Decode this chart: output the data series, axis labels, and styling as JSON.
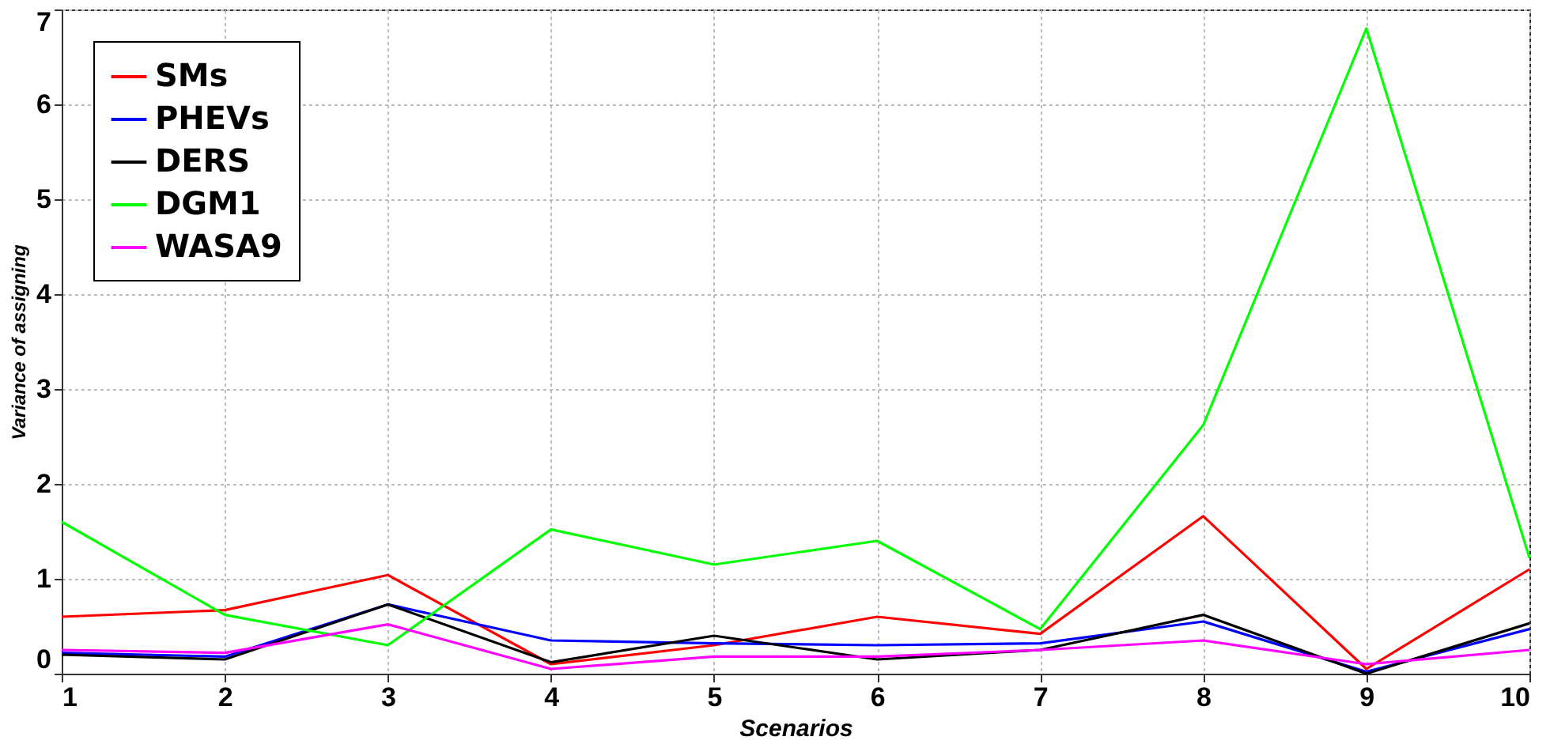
{
  "chart_data": {
    "type": "line",
    "xlabel": "Scenarios",
    "ylabel": "Variance of assigning",
    "x": [
      1,
      2,
      3,
      4,
      5,
      6,
      7,
      8,
      9,
      10
    ],
    "series": [
      {
        "name": "SMs",
        "color": "#ff0000",
        "values": [
          0.6,
          0.67,
          1.04,
          0.1,
          0.3,
          0.6,
          0.42,
          1.66,
          0.05,
          1.1
        ]
      },
      {
        "name": "PHEVs",
        "color": "#0000ff",
        "values": [
          0.22,
          0.18,
          0.73,
          0.35,
          0.32,
          0.3,
          0.32,
          0.55,
          0.02,
          0.47
        ]
      },
      {
        "name": "DERS",
        "color": "#000000",
        "values": [
          0.2,
          0.15,
          0.73,
          0.12,
          0.4,
          0.15,
          0.25,
          0.62,
          0.0,
          0.53
        ]
      },
      {
        "name": "DGM1",
        "color": "#00ff00",
        "values": [
          1.6,
          0.62,
          0.3,
          1.52,
          1.15,
          1.4,
          0.47,
          2.62,
          6.8,
          1.22
        ]
      },
      {
        "name": "WASA9",
        "color": "#ff00ff",
        "values": [
          0.25,
          0.22,
          0.52,
          0.05,
          0.18,
          0.18,
          0.25,
          0.35,
          0.1,
          0.25
        ]
      }
    ],
    "xlim": [
      1,
      10
    ],
    "xticks": [
      1,
      2,
      3,
      4,
      5,
      6,
      7,
      8,
      9,
      10
    ],
    "ylim": [
      0,
      7
    ],
    "yticks": [
      0,
      1,
      2,
      3,
      4,
      5,
      6,
      7
    ],
    "grid": true,
    "legend": "top left",
    "marker": "none",
    "line_style": "solid"
  }
}
